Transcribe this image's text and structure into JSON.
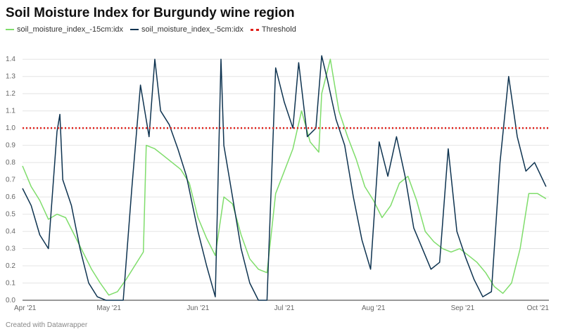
{
  "title": "Soil Moisture Index for Burgundy wine region",
  "credit": "Created with Datawrapper",
  "colors": {
    "s15": "#7fdd6b",
    "s5": "#0e3350",
    "threshold": "#e0201a",
    "grid": "#e4e4e4"
  },
  "chart_data": {
    "type": "line",
    "title": "Soil Moisture Index for Burgundy wine region",
    "xlabel": "",
    "ylabel": "",
    "ylim": [
      0,
      1.45
    ],
    "yticks": [
      "0.0",
      "0.1",
      "0.2",
      "0.3",
      "0.4",
      "0.5",
      "0.6",
      "0.7",
      "0.8",
      "0.9",
      "1.0",
      "1.1",
      "1.2",
      "1.3",
      "1.4"
    ],
    "xticks": [
      "Apr '21",
      "May '21",
      "Jun '21",
      "Jul '21",
      "Aug '21",
      "Sep '21",
      "Oct '21"
    ],
    "xtick_dates": [
      "2021-04-01",
      "2021-05-01",
      "2021-06-01",
      "2021-07-01",
      "2021-08-01",
      "2021-09-01",
      "2021-10-01"
    ],
    "grid": true,
    "legend_position": "top-left",
    "threshold": {
      "name": "Threshold",
      "value": 1.0
    },
    "series": [
      {
        "name": "soil_moisture_index_-15cm:idx",
        "color": "#7fdd6b",
        "x": [
          "2021-04-01",
          "2021-04-04",
          "2021-04-07",
          "2021-04-10",
          "2021-04-13",
          "2021-04-16",
          "2021-04-19",
          "2021-04-22",
          "2021-04-25",
          "2021-04-28",
          "2021-05-01",
          "2021-05-04",
          "2021-05-07",
          "2021-05-10",
          "2021-05-13",
          "2021-05-14",
          "2021-05-17",
          "2021-05-20",
          "2021-05-23",
          "2021-05-26",
          "2021-05-29",
          "2021-06-01",
          "2021-06-04",
          "2021-06-07",
          "2021-06-10",
          "2021-06-13",
          "2021-06-16",
          "2021-06-19",
          "2021-06-22",
          "2021-06-25",
          "2021-06-28",
          "2021-07-01",
          "2021-07-04",
          "2021-07-07",
          "2021-07-10",
          "2021-07-13",
          "2021-07-14",
          "2021-07-17",
          "2021-07-20",
          "2021-07-23",
          "2021-07-26",
          "2021-07-29",
          "2021-08-01",
          "2021-08-04",
          "2021-08-07",
          "2021-08-10",
          "2021-08-13",
          "2021-08-16",
          "2021-08-19",
          "2021-08-22",
          "2021-08-25",
          "2021-08-28",
          "2021-08-31",
          "2021-09-03",
          "2021-09-06",
          "2021-09-09",
          "2021-09-12",
          "2021-09-15",
          "2021-09-18",
          "2021-09-21",
          "2021-09-24",
          "2021-09-27",
          "2021-09-30"
        ],
        "y": [
          0.78,
          0.66,
          0.58,
          0.47,
          0.5,
          0.48,
          0.38,
          0.28,
          0.18,
          0.1,
          0.03,
          0.05,
          0.12,
          0.2,
          0.28,
          0.9,
          0.88,
          0.84,
          0.8,
          0.76,
          0.68,
          0.48,
          0.36,
          0.26,
          0.6,
          0.56,
          0.38,
          0.24,
          0.18,
          0.16,
          0.62,
          0.75,
          0.88,
          1.1,
          0.92,
          0.86,
          1.2,
          1.4,
          1.1,
          0.95,
          0.82,
          0.66,
          0.58,
          0.48,
          0.55,
          0.68,
          0.72,
          0.58,
          0.4,
          0.34,
          0.3,
          0.28,
          0.3,
          0.26,
          0.22,
          0.16,
          0.08,
          0.04,
          0.1,
          0.3,
          0.62,
          0.62,
          0.59
        ]
      },
      {
        "name": "soil_moisture_index_-5cm:idx",
        "color": "#0e3350",
        "x": [
          "2021-04-01",
          "2021-04-04",
          "2021-04-07",
          "2021-04-10",
          "2021-04-13",
          "2021-04-14",
          "2021-04-15",
          "2021-04-18",
          "2021-04-21",
          "2021-04-24",
          "2021-04-27",
          "2021-04-30",
          "2021-05-03",
          "2021-05-06",
          "2021-05-09",
          "2021-05-12",
          "2021-05-15",
          "2021-05-17",
          "2021-05-19",
          "2021-05-22",
          "2021-05-25",
          "2021-05-28",
          "2021-06-01",
          "2021-06-04",
          "2021-06-07",
          "2021-06-09",
          "2021-06-10",
          "2021-06-13",
          "2021-06-16",
          "2021-06-19",
          "2021-06-22",
          "2021-06-25",
          "2021-06-28",
          "2021-07-01",
          "2021-07-04",
          "2021-07-06",
          "2021-07-09",
          "2021-07-12",
          "2021-07-14",
          "2021-07-16",
          "2021-07-19",
          "2021-07-22",
          "2021-07-25",
          "2021-07-28",
          "2021-07-31",
          "2021-08-03",
          "2021-08-06",
          "2021-08-09",
          "2021-08-12",
          "2021-08-15",
          "2021-08-18",
          "2021-08-21",
          "2021-08-24",
          "2021-08-27",
          "2021-08-30",
          "2021-09-02",
          "2021-09-05",
          "2021-09-08",
          "2021-09-11",
          "2021-09-14",
          "2021-09-17",
          "2021-09-20",
          "2021-09-23",
          "2021-09-26",
          "2021-09-30"
        ],
        "y": [
          0.65,
          0.55,
          0.38,
          0.3,
          0.98,
          1.08,
          0.7,
          0.55,
          0.3,
          0.1,
          0.02,
          0.0,
          0.0,
          0.0,
          0.65,
          1.25,
          0.95,
          1.4,
          1.1,
          1.02,
          0.88,
          0.72,
          0.4,
          0.2,
          0.02,
          1.4,
          0.9,
          0.6,
          0.3,
          0.1,
          0.0,
          0.0,
          1.35,
          1.15,
          1.0,
          1.38,
          0.95,
          1.0,
          1.42,
          1.28,
          1.05,
          0.9,
          0.6,
          0.35,
          0.18,
          0.92,
          0.72,
          0.95,
          0.72,
          0.42,
          0.3,
          0.18,
          0.22,
          0.88,
          0.4,
          0.25,
          0.12,
          0.02,
          0.05,
          0.8,
          1.3,
          0.95,
          0.75,
          0.8,
          0.66
        ]
      }
    ]
  }
}
